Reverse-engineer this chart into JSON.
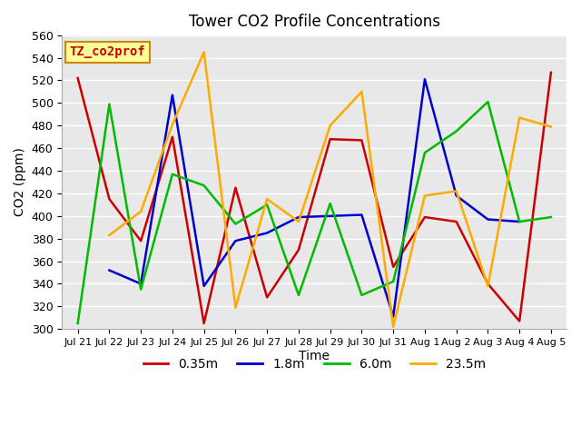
{
  "title": "Tower CO2 Profile Concentrations",
  "xlabel": "Time",
  "ylabel": "CO2 (ppm)",
  "ylim": [
    300,
    560
  ],
  "yticks": [
    300,
    320,
    340,
    360,
    380,
    400,
    420,
    440,
    460,
    480,
    500,
    520,
    540,
    560
  ],
  "x_labels": [
    "Jul 21",
    "Jul 22",
    "Jul 23",
    "Jul 24",
    "Jul 25",
    "Jul 26",
    "Jul 27",
    "Jul 28",
    "Jul 29",
    "Jul 30",
    "Jul 31",
    "Aug 1",
    "Aug 2",
    "Aug 3",
    "Aug 4",
    "Aug 5"
  ],
  "series": {
    "0.35m": {
      "color": "#cc0000",
      "values": [
        522,
        415,
        378,
        470,
        305,
        425,
        328,
        370,
        468,
        467,
        355,
        399,
        395,
        340,
        307,
        527
      ]
    },
    "1.8m": {
      "color": "#0000cc",
      "values": [
        null,
        352,
        340,
        507,
        338,
        378,
        385,
        399,
        400,
        401,
        311,
        521,
        418,
        397,
        395,
        null
      ]
    },
    "6.0m": {
      "color": "#00bb00",
      "values": [
        305,
        499,
        335,
        437,
        427,
        393,
        410,
        330,
        411,
        330,
        342,
        456,
        475,
        501,
        395,
        399
      ]
    },
    "23.5m": {
      "color": "#ffaa00",
      "values": [
        null,
        383,
        404,
        481,
        545,
        319,
        415,
        395,
        480,
        510,
        302,
        418,
        422,
        338,
        487,
        479
      ]
    }
  },
  "annotation_text": "TZ_co2prof",
  "annotation_bg": "#ffff99",
  "annotation_border": "#cc8800",
  "annotation_text_color": "#cc0000",
  "bg_color": "#e8e8e8",
  "legend_labels": [
    "0.35m",
    "1.8m",
    "6.0m",
    "23.5m"
  ],
  "legend_colors": [
    "#cc0000",
    "#0000cc",
    "#00bb00",
    "#ffaa00"
  ]
}
